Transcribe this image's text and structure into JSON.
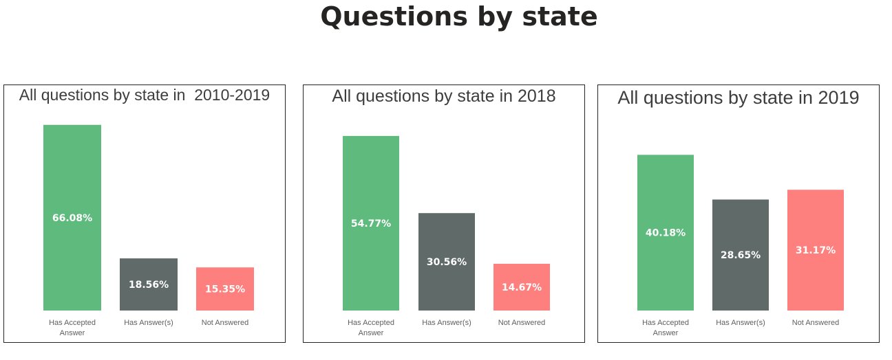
{
  "page_title": "Questions by state",
  "colors": {
    "has_accepted_answer": "#5eba7d",
    "has_answers": "#606a69",
    "not_answered": "#fd807f",
    "title_text": "#252423",
    "panel_border": "#252423"
  },
  "chart_data": [
    {
      "type": "bar",
      "title": "All questions by state in  2010-2019",
      "categories": [
        "Has Accepted Answer",
        "Has Answer(s)",
        "Not Answered"
      ],
      "category_lines": [
        [
          "Has Accepted",
          "Answer"
        ],
        [
          "Has Answer(s)"
        ],
        [
          "Not Answered"
        ]
      ],
      "values": [
        66.08,
        18.56,
        15.35
      ],
      "data_labels": [
        "66.08%",
        "18.56%",
        "15.35%"
      ],
      "xlabel": "",
      "ylabel": "",
      "grid": false,
      "legend": "none"
    },
    {
      "type": "bar",
      "title": "All questions by state in 2018",
      "categories": [
        "Has Accepted Answer",
        "Has Answer(s)",
        "Not Answered"
      ],
      "category_lines": [
        [
          "Has Accepted",
          "Answer"
        ],
        [
          "Has Answer(s)"
        ],
        [
          "Not Answered"
        ]
      ],
      "values": [
        54.77,
        30.56,
        14.67
      ],
      "data_labels": [
        "54.77%",
        "30.56%",
        "14.67%"
      ],
      "xlabel": "",
      "ylabel": "",
      "grid": false,
      "legend": "none"
    },
    {
      "type": "bar",
      "title": "All questions by state in 2019",
      "categories": [
        "Has Accepted Answer",
        "Has Answer(s)",
        "Not Answered"
      ],
      "category_lines": [
        [
          "Has Accepted",
          "Answer"
        ],
        [
          "Has Answer(s)"
        ],
        [
          "Not Answered"
        ]
      ],
      "values": [
        40.18,
        28.65,
        31.17
      ],
      "data_labels": [
        "40.18%",
        "28.65%",
        "31.17%"
      ],
      "xlabel": "",
      "ylabel": "",
      "grid": false,
      "legend": "none"
    }
  ]
}
